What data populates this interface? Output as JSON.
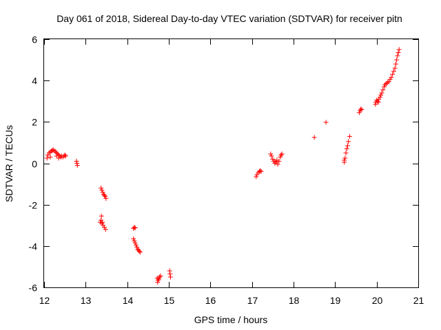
{
  "chart_data": {
    "type": "scatter",
    "title": "Day 061 of 2018, Sidereal Day-to-day VTEC variation (SDTVAR) for receiver pitn",
    "xlabel": "GPS time / hours",
    "ylabel": "SDTVAR / TECUs",
    "xlim": [
      12,
      21
    ],
    "ylim": [
      -6,
      6
    ],
    "xticks": [
      12,
      13,
      14,
      15,
      16,
      17,
      18,
      19,
      20,
      21
    ],
    "yticks": [
      -6,
      -4,
      -2,
      0,
      2,
      4,
      6
    ],
    "marker": "+",
    "color": "#ff0000",
    "grid": false,
    "series": [
      {
        "name": "SDTVAR",
        "points": [
          [
            12.07,
            0.25
          ],
          [
            12.09,
            0.4
          ],
          [
            12.12,
            0.5
          ],
          [
            12.15,
            0.55
          ],
          [
            12.18,
            0.6
          ],
          [
            12.2,
            0.62
          ],
          [
            12.22,
            0.65
          ],
          [
            12.25,
            0.6
          ],
          [
            12.28,
            0.55
          ],
          [
            12.3,
            0.5
          ],
          [
            12.33,
            0.45
          ],
          [
            12.35,
            0.4
          ],
          [
            12.38,
            0.35
          ],
          [
            12.4,
            0.3
          ],
          [
            12.42,
            0.35
          ],
          [
            12.45,
            0.3
          ],
          [
            12.48,
            0.35
          ],
          [
            12.5,
            0.4
          ],
          [
            12.52,
            0.35
          ],
          [
            12.15,
            0.3
          ],
          [
            12.3,
            0.35
          ],
          [
            12.35,
            0.25
          ],
          [
            12.78,
            0.1
          ],
          [
            12.79,
            0.0
          ],
          [
            12.8,
            -0.1
          ],
          [
            13.37,
            -1.2
          ],
          [
            13.39,
            -1.3
          ],
          [
            13.41,
            -1.4
          ],
          [
            13.43,
            -1.5
          ],
          [
            13.45,
            -1.55
          ],
          [
            13.47,
            -1.6
          ],
          [
            13.49,
            -1.7
          ],
          [
            13.38,
            -2.55
          ],
          [
            13.37,
            -2.75
          ],
          [
            13.39,
            -2.9
          ],
          [
            13.4,
            -2.85
          ],
          [
            13.42,
            -3.0
          ],
          [
            13.45,
            -3.1
          ],
          [
            13.48,
            -3.2
          ],
          [
            13.35,
            -2.85
          ],
          [
            14.15,
            -3.15
          ],
          [
            14.17,
            -3.1
          ],
          [
            14.19,
            -3.12
          ],
          [
            14.15,
            -3.65
          ],
          [
            14.17,
            -3.75
          ],
          [
            14.19,
            -3.85
          ],
          [
            14.21,
            -3.95
          ],
          [
            14.23,
            -4.05
          ],
          [
            14.25,
            -4.15
          ],
          [
            14.27,
            -4.2
          ],
          [
            14.29,
            -4.25
          ],
          [
            14.31,
            -4.3
          ],
          [
            14.72,
            -5.55
          ],
          [
            14.74,
            -5.65
          ],
          [
            14.76,
            -5.6
          ],
          [
            14.78,
            -5.5
          ],
          [
            14.8,
            -5.45
          ],
          [
            14.73,
            -5.75
          ],
          [
            15.02,
            -5.2
          ],
          [
            15.03,
            -5.35
          ],
          [
            15.04,
            -5.5
          ],
          [
            17.1,
            -0.65
          ],
          [
            17.12,
            -0.55
          ],
          [
            17.15,
            -0.45
          ],
          [
            17.18,
            -0.4
          ],
          [
            17.2,
            -0.35
          ],
          [
            17.22,
            -0.4
          ],
          [
            17.45,
            0.45
          ],
          [
            17.47,
            0.35
          ],
          [
            17.5,
            0.2
          ],
          [
            17.52,
            0.1
          ],
          [
            17.55,
            0.0
          ],
          [
            17.58,
            0.05
          ],
          [
            17.6,
            0.15
          ],
          [
            17.62,
            -0.05
          ],
          [
            17.65,
            0.1
          ],
          [
            17.68,
            0.3
          ],
          [
            17.7,
            0.4
          ],
          [
            17.72,
            0.45
          ],
          [
            17.55,
            0.1
          ],
          [
            18.5,
            1.25
          ],
          [
            18.78,
            1.98
          ],
          [
            19.22,
            0.05
          ],
          [
            19.24,
            0.25
          ],
          [
            19.26,
            0.5
          ],
          [
            19.28,
            0.7
          ],
          [
            19.3,
            0.85
          ],
          [
            19.32,
            1.05
          ],
          [
            19.35,
            1.3
          ],
          [
            19.22,
            0.15
          ],
          [
            19.58,
            2.45
          ],
          [
            19.6,
            2.55
          ],
          [
            19.62,
            2.62
          ],
          [
            19.64,
            2.6
          ],
          [
            19.97,
            2.85
          ],
          [
            19.98,
            2.95
          ],
          [
            20.0,
            3.05
          ],
          [
            20.02,
            3.0
          ],
          [
            20.04,
            2.95
          ],
          [
            20.05,
            3.1
          ],
          [
            20.08,
            3.2
          ],
          [
            20.1,
            3.3
          ],
          [
            20.12,
            3.4
          ],
          [
            20.15,
            3.55
          ],
          [
            20.18,
            3.7
          ],
          [
            20.2,
            3.8
          ],
          [
            20.23,
            3.85
          ],
          [
            20.26,
            3.9
          ],
          [
            20.29,
            3.95
          ],
          [
            20.32,
            4.05
          ],
          [
            20.35,
            4.15
          ],
          [
            20.38,
            4.3
          ],
          [
            20.41,
            4.45
          ],
          [
            20.44,
            4.6
          ],
          [
            20.46,
            4.8
          ],
          [
            20.48,
            5.0
          ],
          [
            20.5,
            5.2
          ],
          [
            20.52,
            5.35
          ],
          [
            20.54,
            5.5
          ]
        ]
      }
    ]
  }
}
